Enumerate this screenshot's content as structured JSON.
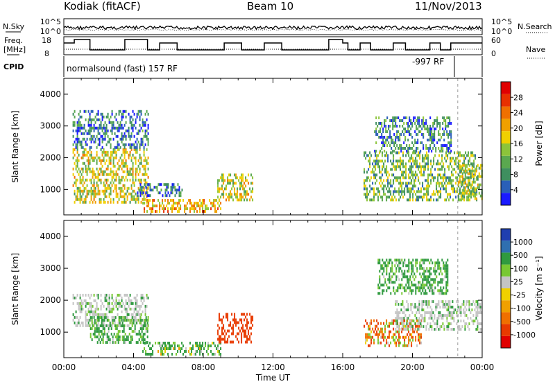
{
  "header": {
    "station": "Kodiak (fitACF)",
    "beam": "Beam 10",
    "date": "11/Nov/2013"
  },
  "strip": {
    "nsky_label": "N.Sky",
    "nsearch_label": "N.Search",
    "nsky_ticks": [
      "10^5",
      "10^0"
    ],
    "nsearch_ticks": [
      "10^5",
      "10^0"
    ],
    "freq_label_1": "Freq.",
    "freq_label_2": "[MHz]",
    "freq_ticks": [
      "18",
      "8"
    ],
    "nave_label": "Nave",
    "nave_ticks": [
      "60",
      "0"
    ],
    "cpid_label": "CPID",
    "cpid_program": "normalsound (fast) 157 RF",
    "cpid_program_2": "-997 RF"
  },
  "time_axis": {
    "ticks": [
      "00:00",
      "04:00",
      "08:00",
      "12:00",
      "16:00",
      "20:00",
      "00:00"
    ],
    "xlabel": "Time UT"
  },
  "colors": {
    "power": [
      "#1a1aff",
      "#2a5fb8",
      "#3f8f5f",
      "#5aa84f",
      "#8cc43a",
      "#f0d000",
      "#f0a000",
      "#f07000",
      "#e83000",
      "#e00000"
    ],
    "velocity": [
      "#e00000",
      "#e83a00",
      "#f07000",
      "#f0a000",
      "#f0d000",
      "#c4c4c4",
      "#78c832",
      "#2f9a3f",
      "#2f6fb0",
      "#1f3fb0"
    ]
  },
  "chart_data": [
    {
      "type": "heatmap",
      "panel": "power",
      "xlabel": "Time UT",
      "ylabel": "Slant Range [km]",
      "xlim_hours": [
        0,
        24
      ],
      "ylim": [
        200,
        4500
      ],
      "yticks": [
        1000,
        2000,
        3000,
        4000
      ],
      "colorbar_label": "Power [dB]",
      "colorbar_range": [
        0,
        32
      ],
      "colorbar_ticks": [
        "4",
        "8",
        "12",
        "16",
        "20",
        "24",
        "28"
      ],
      "echo_regions": [
        {
          "t0": 0.5,
          "t1": 4.8,
          "r0": 600,
          "r1": 2300,
          "level": 16
        },
        {
          "t0": 0.5,
          "t1": 4.8,
          "r0": 2300,
          "r1": 3500,
          "level": 6
        },
        {
          "t0": 4.5,
          "t1": 9.0,
          "r0": 300,
          "r1": 700,
          "level": 20
        },
        {
          "t0": 4.2,
          "t1": 6.8,
          "r0": 800,
          "r1": 1200,
          "level": 6
        },
        {
          "t0": 8.8,
          "t1": 10.8,
          "r0": 700,
          "r1": 1500,
          "level": 16
        },
        {
          "t0": 17.2,
          "t1": 23.7,
          "r0": 700,
          "r1": 2200,
          "level": 12
        },
        {
          "t0": 17.8,
          "t1": 22.2,
          "r0": 2200,
          "r1": 3300,
          "level": 8
        },
        {
          "t0": 22.6,
          "t1": 24.0,
          "r0": 700,
          "r1": 1800,
          "level": 14
        }
      ]
    },
    {
      "type": "heatmap",
      "panel": "velocity",
      "xlabel": "Time UT",
      "ylabel": "Slant Range [km]",
      "xlim_hours": [
        0,
        24
      ],
      "ylim": [
        200,
        4500
      ],
      "yticks": [
        1000,
        2000,
        3000,
        4000
      ],
      "colorbar_label": "Velocity [m s⁻¹]",
      "colorbar_ticks": [
        "1000",
        "500",
        "100",
        "25",
        "-25",
        "-100",
        "-500",
        "-1000"
      ],
      "echo_regions": [
        {
          "t0": 0.5,
          "t1": 4.8,
          "r0": 1200,
          "r1": 2200,
          "velocity": 0
        },
        {
          "t0": 1.5,
          "t1": 4.8,
          "r0": 700,
          "r1": 1500,
          "velocity": 150
        },
        {
          "t0": 4.5,
          "t1": 9.0,
          "r0": 300,
          "r1": 700,
          "velocity": 120
        },
        {
          "t0": 8.8,
          "t1": 10.8,
          "r0": 700,
          "r1": 1600,
          "velocity": -300
        },
        {
          "t0": 17.2,
          "t1": 20.5,
          "r0": 600,
          "r1": 1400,
          "velocity": -60
        },
        {
          "t0": 19.0,
          "t1": 24.0,
          "r0": 1100,
          "r1": 2000,
          "velocity": 0
        },
        {
          "t0": 18.0,
          "t1": 22.0,
          "r0": 2200,
          "r1": 3300,
          "velocity": 150
        }
      ]
    }
  ]
}
